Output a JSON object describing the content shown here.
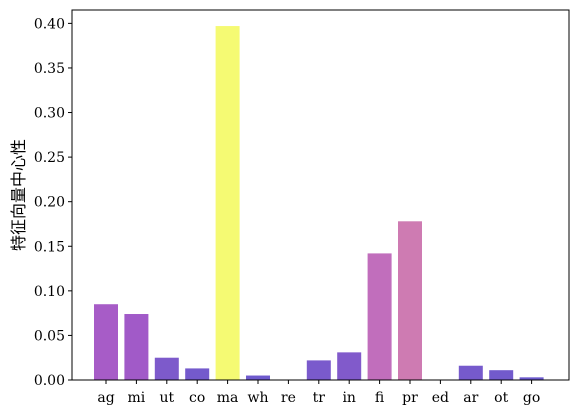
{
  "chart_data": {
    "type": "bar",
    "title": "",
    "xlabel": "",
    "ylabel": "特征向量中心性",
    "ylim": [
      0,
      0.415
    ],
    "yticks": [
      0.0,
      0.05,
      0.1,
      0.15,
      0.2,
      0.25,
      0.3,
      0.35,
      0.4
    ],
    "categories": [
      "ag",
      "mi",
      "ut",
      "co",
      "ma",
      "wh",
      "re",
      "tr",
      "in",
      "fi",
      "pr",
      "ed",
      "ar",
      "ot",
      "go"
    ],
    "values": [
      0.085,
      0.074,
      0.025,
      0.013,
      0.397,
      0.005,
      0.0,
      0.022,
      0.031,
      0.142,
      0.178,
      0.0,
      0.016,
      0.011,
      0.003
    ],
    "colormap": "plasma",
    "grid": false
  }
}
